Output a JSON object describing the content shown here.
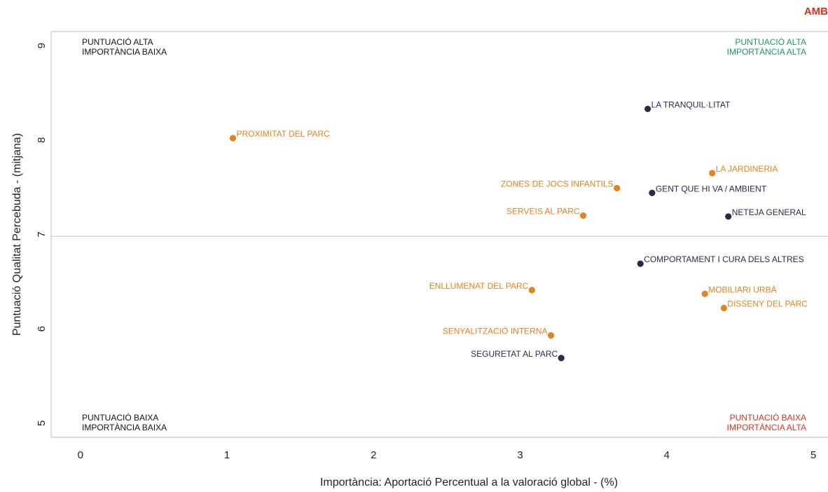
{
  "corner_tag": "AMB",
  "colors": {
    "orange": "#e8821e",
    "navy": "#2b2a4c",
    "green": "#1a9a5a",
    "red": "#e0301e",
    "black": "#111111",
    "frame": "#c8c8c8"
  },
  "chart_data": {
    "type": "scatter",
    "title": "",
    "xlabel": "Importància: Aportació Percentual a la valoració global - (%)",
    "ylabel": "Puntuació Qualitat Percebuda - (mitjana)",
    "xlim": [
      -0.2,
      5.1
    ],
    "ylim": [
      4.85,
      9.15
    ],
    "x_ticks": [
      0,
      1,
      2,
      3,
      4,
      5
    ],
    "y_ticks": [
      5,
      6,
      7,
      8,
      9
    ],
    "reference_lines": {
      "y": 6.98
    },
    "quadrant_labels": [
      {
        "lines": [
          "PUNTUACIÓ ALTA",
          "IMPORTÀNCIA BAIXA"
        ],
        "corner": "top-left",
        "color": "black"
      },
      {
        "lines": [
          "PUNTUACIÓ ALTA",
          "IMPORTÀNCIA ALTA"
        ],
        "corner": "top-right",
        "color": "green"
      },
      {
        "lines": [
          "PUNTUACIÓ BAIXA",
          "IMPORTÀNCIA BAIXA"
        ],
        "corner": "bottom-left",
        "color": "black"
      },
      {
        "lines": [
          "PUNTUACIÓ BAIXA",
          "IMPORTÀNCIA ALTA"
        ],
        "corner": "bottom-right",
        "color": "red"
      }
    ],
    "points": [
      {
        "label": "LA TRANQUIL·LITAT",
        "x": 3.87,
        "y": 8.33,
        "color": "navy",
        "label_side": "right"
      },
      {
        "label": "PROXIMITAT DEL PARC",
        "x": 1.04,
        "y": 8.02,
        "color": "orange",
        "label_side": "right"
      },
      {
        "label": "LA JARDINERIA",
        "x": 4.31,
        "y": 7.65,
        "color": "orange",
        "label_side": "right"
      },
      {
        "label": "ZONES DE JOCS INFANTILS",
        "x": 3.66,
        "y": 7.49,
        "color": "orange",
        "label_side": "left"
      },
      {
        "label": "GENT QUE HI VA / AMBIENT",
        "x": 3.9,
        "y": 7.44,
        "color": "navy",
        "label_side": "right"
      },
      {
        "label": "SERVEIS AL PARC",
        "x": 3.43,
        "y": 7.2,
        "color": "orange",
        "label_side": "left"
      },
      {
        "label": "NETEJA GENERAL",
        "x": 4.42,
        "y": 7.19,
        "color": "navy",
        "label_side": "right"
      },
      {
        "label": "COMPORTAMENT I CURA DELS ALTRES",
        "x": 3.82,
        "y": 6.69,
        "color": "navy",
        "label_side": "right"
      },
      {
        "label": "ENLLUMENAT DEL PARC",
        "x": 3.08,
        "y": 6.41,
        "color": "orange",
        "label_side": "left"
      },
      {
        "label": "MOBILIARI URBÀ",
        "x": 4.26,
        "y": 6.37,
        "color": "orange",
        "label_side": "right"
      },
      {
        "label": "DISSENY DEL PARC",
        "x": 4.39,
        "y": 6.22,
        "color": "orange",
        "label_side": "right"
      },
      {
        "label": "SENYALITZACIÓ INTERNA",
        "x": 3.21,
        "y": 5.93,
        "color": "orange",
        "label_side": "left"
      },
      {
        "label": "SEGURETAT AL PARC",
        "x": 3.28,
        "y": 5.69,
        "color": "navy",
        "label_side": "left"
      }
    ]
  }
}
